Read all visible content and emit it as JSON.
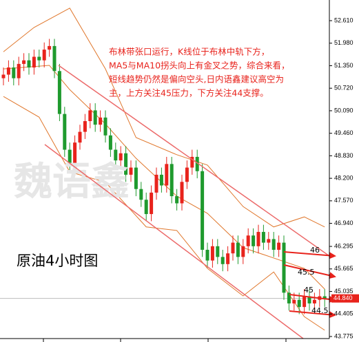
{
  "chart_data": {
    "type": "candlestick",
    "title": "原油4小时图",
    "watermark": "魏语鑫",
    "annotation_lines": [
      "布林带张口运行，K线位于布林中轨下方，",
      "MA5与MA10拐头向上有金叉之势，综合来看，",
      "短线趋势仍然是偏向空头,日内语鑫建议高空为",
      "主，上方关注45压力，下方关注44支撑。"
    ],
    "level_labels": [
      "46",
      "45.5",
      "45",
      "44.5"
    ],
    "up_color": "#e8231c",
    "down_color": "#1f9a2e",
    "band_color": "#e0772c",
    "open": [
      51.0,
      51.1,
      51.3,
      51.0,
      51.4,
      51.5,
      51.3,
      51.6,
      51.5,
      51.8,
      51.9,
      51.2,
      50.0,
      49.0,
      48.6,
      49.2,
      49.5,
      49.8,
      50.1,
      49.7,
      49.9,
      49.4,
      49.0,
      48.7,
      48.9,
      48.3,
      48.5,
      47.9,
      47.6,
      47.2,
      47.8,
      48.3,
      48.0,
      48.6,
      47.7,
      47.5,
      48.1,
      48.5,
      48.8,
      48.4,
      46.2,
      45.9,
      46.3,
      46.0,
      45.8,
      46.1,
      46.4,
      46.0,
      46.3,
      46.6,
      46.3,
      46.7,
      46.4,
      46.5,
      46.2,
      46.4,
      45.0,
      44.7,
      44.8,
      44.6,
      44.9,
      44.7,
      44.8,
      44.9
    ],
    "high": [
      51.3,
      51.5,
      51.5,
      51.6,
      51.7,
      51.7,
      51.8,
      51.8,
      52.0,
      52.1,
      52.1,
      51.4,
      50.2,
      49.2,
      49.4,
      49.7,
      50.0,
      50.3,
      50.3,
      50.1,
      50.1,
      49.6,
      49.2,
      49.1,
      49.1,
      48.7,
      48.7,
      48.1,
      47.8,
      48.0,
      48.5,
      48.5,
      48.8,
      48.8,
      47.9,
      48.3,
      48.7,
      49.0,
      49.0,
      48.6,
      46.4,
      46.5,
      46.5,
      46.2,
      46.3,
      46.6,
      46.6,
      46.5,
      46.8,
      46.8,
      46.9,
      46.9,
      46.7,
      46.7,
      46.6,
      46.6,
      45.2,
      45.0,
      45.0,
      45.1,
      45.1,
      45.0,
      45.1,
      45.1
    ],
    "low": [
      50.8,
      50.9,
      50.8,
      50.8,
      51.2,
      51.1,
      51.1,
      51.3,
      51.3,
      51.6,
      51.0,
      49.8,
      48.8,
      48.4,
      48.4,
      49.0,
      49.3,
      49.6,
      49.5,
      49.5,
      49.2,
      48.8,
      48.5,
      48.5,
      48.1,
      48.1,
      47.7,
      47.4,
      47.0,
      47.0,
      47.6,
      47.8,
      47.8,
      47.5,
      47.3,
      47.3,
      47.9,
      48.3,
      48.2,
      46.0,
      45.7,
      45.7,
      45.8,
      45.6,
      45.6,
      45.9,
      45.8,
      45.8,
      46.1,
      46.1,
      46.1,
      46.2,
      46.2,
      46.0,
      46.0,
      44.8,
      44.5,
      44.5,
      44.4,
      44.4,
      44.5,
      44.5,
      44.6,
      44.6
    ],
    "close": [
      51.1,
      51.3,
      51.0,
      51.4,
      51.5,
      51.3,
      51.6,
      51.5,
      51.8,
      51.9,
      51.2,
      50.0,
      49.0,
      48.6,
      49.2,
      49.5,
      49.8,
      50.1,
      49.7,
      49.9,
      49.4,
      49.0,
      48.7,
      48.9,
      48.3,
      48.5,
      47.9,
      47.6,
      47.2,
      47.8,
      48.3,
      48.0,
      48.6,
      47.7,
      47.5,
      48.1,
      48.5,
      48.8,
      48.4,
      46.2,
      45.9,
      46.3,
      46.0,
      45.8,
      46.1,
      46.4,
      46.0,
      46.3,
      46.6,
      46.3,
      46.7,
      46.4,
      46.5,
      46.2,
      46.4,
      45.0,
      44.7,
      44.8,
      44.6,
      44.9,
      44.7,
      44.8,
      44.9,
      44.84
    ],
    "bands": [
      {
        "x": [
          0,
          6,
          13,
          20,
          26,
          34,
          40,
          47,
          53,
          59,
          63
        ],
        "values": [
          51.74,
          52.42,
          52.96,
          51.26,
          49.34,
          48.86,
          48.57,
          47.41,
          46.84,
          47.12,
          46.84
        ]
      },
      {
        "x": [
          0,
          9,
          13,
          20,
          26,
          34,
          40,
          47,
          53,
          59,
          63
        ],
        "values": [
          51.26,
          51.36,
          50.68,
          49.72,
          48.76,
          47.7,
          47.22,
          46.26,
          45.97,
          45.68,
          45.1
        ]
      },
      {
        "x": [
          0,
          7,
          13,
          20,
          28,
          34,
          40,
          47,
          53,
          59,
          63
        ],
        "values": [
          50.49,
          49.91,
          48.38,
          48.09,
          46.84,
          46.74,
          45.68,
          44.91,
          45.58,
          44.33,
          43.95
        ]
      }
    ],
    "last_price": {
      "value": 44.84,
      "label": "44.840"
    },
    "ylim": [
      43.717,
      53.188
    ],
    "yticks": [
      {
        "value": 52.61,
        "label": "52.610"
      },
      {
        "value": 51.98,
        "label": "51.980"
      },
      {
        "value": 51.35,
        "label": "51.350"
      },
      {
        "value": 50.72,
        "label": "50.720"
      },
      {
        "value": 50.09,
        "label": "50.090"
      },
      {
        "value": 49.46,
        "label": "49.460"
      },
      {
        "value": 48.83,
        "label": "48.830"
      },
      {
        "value": 48.2,
        "label": "48.200"
      },
      {
        "value": 47.57,
        "label": "47.570"
      },
      {
        "value": 46.94,
        "label": "46.940"
      },
      46.295,
      45.665,
      45.035,
      44.405,
      43.775
    ]
  }
}
